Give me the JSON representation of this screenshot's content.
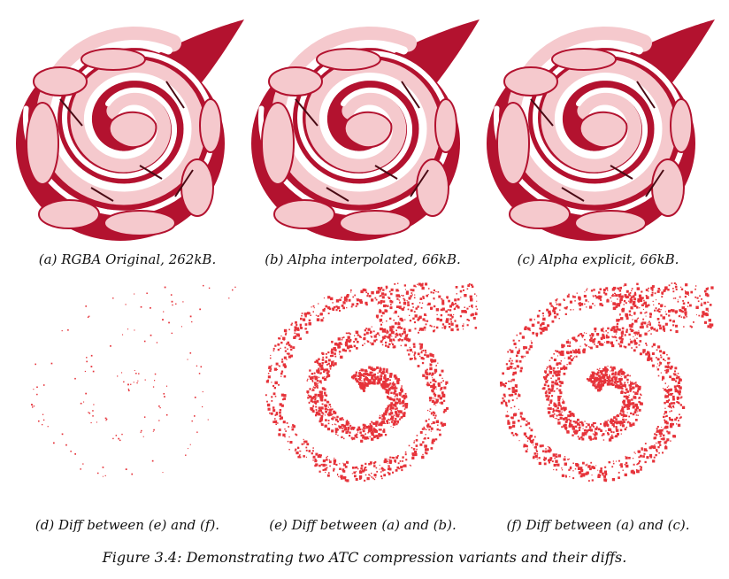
{
  "figure": {
    "caption": "Figure 3.4: Demonstrating two ATC compression variants and their diffs."
  },
  "panels": [
    {
      "label": "(a) RGBA Original, 262kB.",
      "kind": "texture"
    },
    {
      "label": "(b) Alpha interpolated, 66kB.",
      "kind": "texture"
    },
    {
      "label": "(c) Alpha explicit, 66kB.",
      "kind": "texture"
    },
    {
      "label": "(d) Diff between (e) and (f).",
      "kind": "diff-sparse"
    },
    {
      "label": "(e) Diff between (a) and (b).",
      "kind": "diff-dense"
    },
    {
      "label": "(f) Diff between (a) and (c).",
      "kind": "diff-dense"
    }
  ],
  "colors": {
    "texture_dark": "#b3122f",
    "texture_light": "#f5c9cd",
    "texture_mid": "#e77c8c",
    "diff_red": "#e6333a"
  }
}
